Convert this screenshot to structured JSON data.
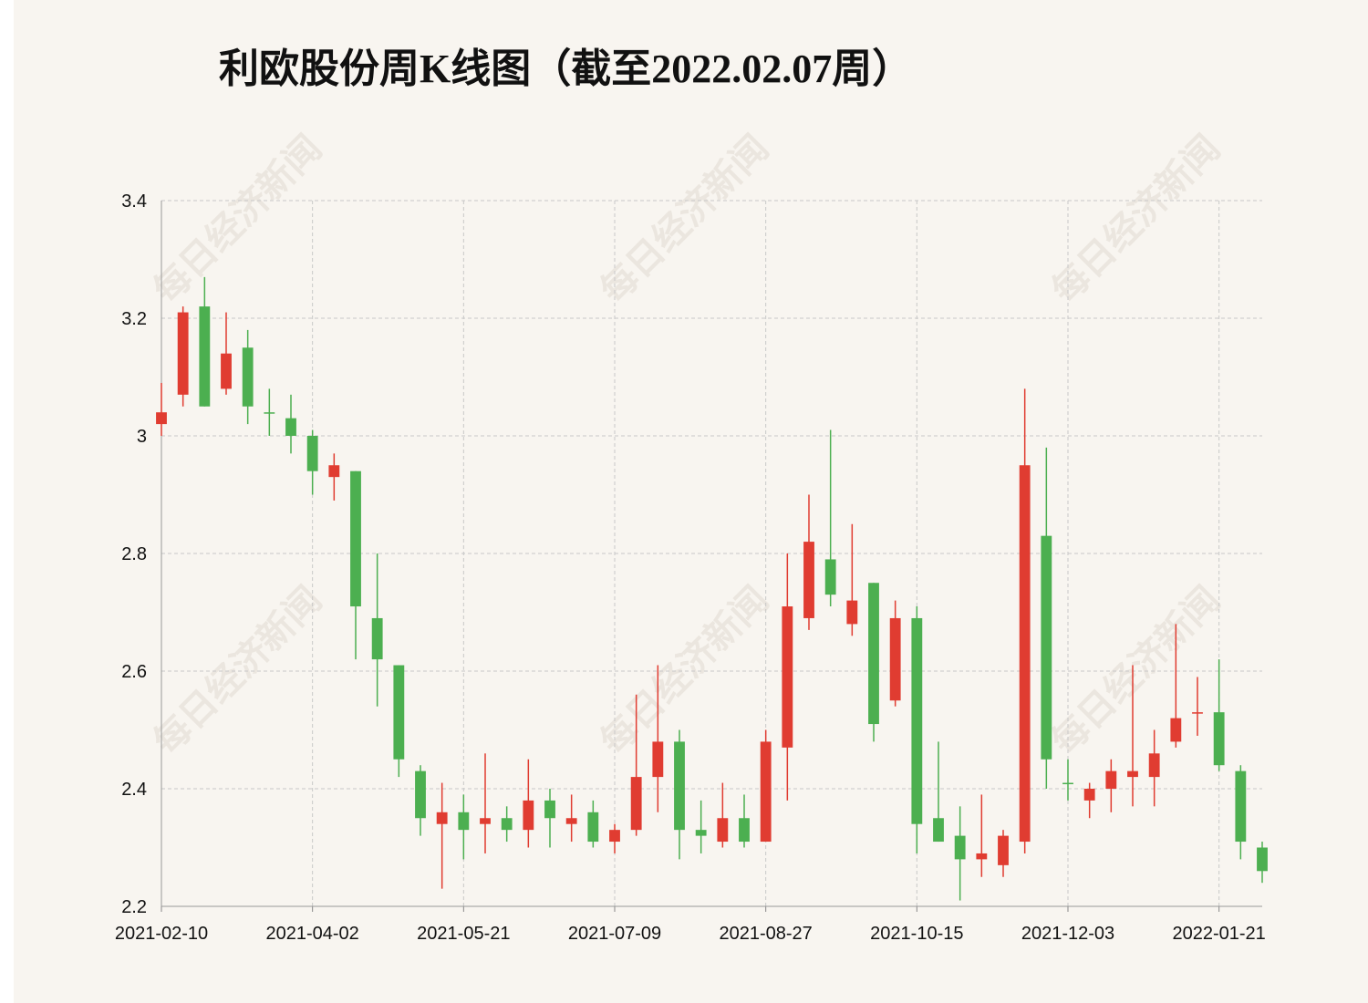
{
  "chart_data": {
    "type": "candlestick",
    "title": "利欧股份周K线图（截至2022.02.07周）",
    "watermark": "每日经济新闻",
    "categories": [
      "2021-02-10",
      null,
      null,
      null,
      null,
      null,
      null,
      "2021-04-02",
      null,
      null,
      null,
      null,
      null,
      null,
      "2021-05-21",
      null,
      null,
      null,
      null,
      null,
      null,
      "2021-07-09",
      null,
      null,
      null,
      null,
      null,
      null,
      "2021-08-27",
      null,
      null,
      null,
      null,
      null,
      null,
      "2021-10-15",
      null,
      null,
      null,
      null,
      null,
      null,
      "2021-12-03",
      null,
      null,
      null,
      null,
      null,
      null,
      "2022-01-21",
      null,
      null
    ],
    "open": [
      3.02,
      3.07,
      3.22,
      3.08,
      3.15,
      3.04,
      3.03,
      3.0,
      2.93,
      2.94,
      2.69,
      2.61,
      2.43,
      2.34,
      2.36,
      2.34,
      2.35,
      2.33,
      2.38,
      2.34,
      2.36,
      2.31,
      2.33,
      2.42,
      2.48,
      2.33,
      2.31,
      2.35,
      2.31,
      2.47,
      2.69,
      2.79,
      2.68,
      2.75,
      2.55,
      2.69,
      2.35,
      2.32,
      2.28,
      2.27,
      2.31,
      2.83,
      2.41,
      2.38,
      2.4,
      2.42,
      2.42,
      2.48,
      2.53,
      2.53,
      2.43,
      2.3
    ],
    "high": [
      3.09,
      3.22,
      3.27,
      3.21,
      3.18,
      3.08,
      3.07,
      3.01,
      2.97,
      2.94,
      2.8,
      2.61,
      2.44,
      2.41,
      2.39,
      2.46,
      2.37,
      2.45,
      2.4,
      2.39,
      2.38,
      2.34,
      2.56,
      2.61,
      2.5,
      2.38,
      2.41,
      2.39,
      2.5,
      2.8,
      2.9,
      3.01,
      2.85,
      2.75,
      2.72,
      2.71,
      2.48,
      2.37,
      2.39,
      2.33,
      3.08,
      2.98,
      2.45,
      2.41,
      2.45,
      2.61,
      2.5,
      2.68,
      2.59,
      2.62,
      2.44,
      2.31
    ],
    "low": [
      3.0,
      3.05,
      3.05,
      3.07,
      3.02,
      3.0,
      2.97,
      2.9,
      2.89,
      2.62,
      2.54,
      2.42,
      2.32,
      2.23,
      2.28,
      2.29,
      2.31,
      2.3,
      2.3,
      2.31,
      2.3,
      2.29,
      2.32,
      2.36,
      2.28,
      2.29,
      2.3,
      2.3,
      2.31,
      2.38,
      2.67,
      2.71,
      2.66,
      2.48,
      2.54,
      2.29,
      2.31,
      2.21,
      2.25,
      2.25,
      2.29,
      2.4,
      2.38,
      2.35,
      2.36,
      2.37,
      2.37,
      2.47,
      2.49,
      2.43,
      2.28,
      2.24
    ],
    "close": [
      3.04,
      3.21,
      3.05,
      3.14,
      3.05,
      3.04,
      3.0,
      2.94,
      2.95,
      2.71,
      2.62,
      2.45,
      2.35,
      2.36,
      2.33,
      2.35,
      2.33,
      2.38,
      2.35,
      2.35,
      2.31,
      2.33,
      2.42,
      2.48,
      2.33,
      2.32,
      2.35,
      2.31,
      2.48,
      2.71,
      2.82,
      2.73,
      2.72,
      2.51,
      2.69,
      2.34,
      2.31,
      2.28,
      2.29,
      2.32,
      2.95,
      2.45,
      2.41,
      2.4,
      2.43,
      2.43,
      2.46,
      2.52,
      2.53,
      2.44,
      2.31,
      2.26
    ],
    "up_color": "#e03c31",
    "down_color": "#4caf50",
    "ylim": [
      2.2,
      3.4
    ],
    "yticks": [
      2.2,
      2.4,
      2.6,
      2.8,
      3,
      3.2,
      3.4
    ],
    "grid": true
  }
}
